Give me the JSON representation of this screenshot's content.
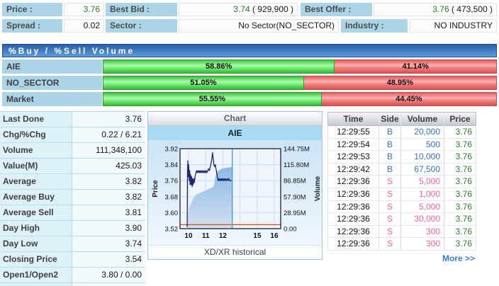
{
  "colors": {
    "up_green": "#2b7d2b",
    "buy_blue": "#3a6fc4",
    "sell_pink": "#f45fa4",
    "label_bg": "#abd4e6",
    "section_header_top": "#2a5fa5",
    "section_header_bottom": "#5b9bdf",
    "link_blue": "#3a7fc0",
    "price_line": "#20276e",
    "ref_line_red": "#e04818",
    "now_line_blue": "#5b9bd5"
  },
  "topbar": {
    "price_label": "Price :",
    "price_value": "3.76",
    "best_bid_label": "Best Bid :",
    "best_bid_value": "3.74",
    "best_bid_qty": " ( 929,900 )",
    "best_offer_label": "Best Offer :",
    "best_offer_value": "3.76",
    "best_offer_qty": " ( 473,500 )",
    "spread_label": "Spread :",
    "spread_value": "0.02",
    "sector_label": "Sector :",
    "sector_value": "No Sector(NO_SECTOR)",
    "industry_label": "Industry :",
    "industry_value": "NO INDUSTRY"
  },
  "buysell": {
    "title": "%Buy / %Sell Volume",
    "rows": [
      {
        "label": "AIE",
        "buy_pct": 58.86,
        "sell_pct": 41.14,
        "buy_text": "58.86%",
        "sell_text": "41.14%"
      },
      {
        "label": "NO_SECTOR",
        "buy_pct": 51.05,
        "sell_pct": 48.95,
        "buy_text": "51.05%",
        "sell_text": "48.95%"
      },
      {
        "label": "Market",
        "buy_pct": 55.55,
        "sell_pct": 44.45,
        "buy_text": "55.55%",
        "sell_text": "44.45%"
      }
    ]
  },
  "stats": {
    "rows": [
      {
        "label": "Last Done",
        "value": "3.76",
        "color": "green"
      },
      {
        "label": "Chg/%Chg",
        "value": "0.22 / 6.21",
        "color": "green"
      },
      {
        "label": "Volume",
        "value": "111,348,100",
        "color": "dark"
      },
      {
        "label": "Value(M)",
        "value": "425.03",
        "color": "dark"
      },
      {
        "label": "Average",
        "value": "3.82",
        "color": "dark"
      },
      {
        "label": "Average Buy",
        "value": "3.82",
        "color": "dark"
      },
      {
        "label": "Average Sell",
        "value": "3.81",
        "color": "dark"
      },
      {
        "label": "Day High",
        "value": "3.90",
        "color": "green"
      },
      {
        "label": "Day Low",
        "value": "3.74",
        "color": "green"
      },
      {
        "label": "Closing Price",
        "value": "3.54",
        "color": "dark"
      },
      {
        "label": "Open1/Open2",
        "value": "3.80 / 0.00",
        "color": "green"
      }
    ]
  },
  "chart_panel": {
    "title": "Chart",
    "footer": "XD/XR historical"
  },
  "chart_data": {
    "type": "line",
    "title": "AIE",
    "x_axis": {
      "ticks": [
        {
          "label": "10",
          "f": 0.0845
        },
        {
          "label": "11",
          "f": 0.2549
        },
        {
          "label": "12",
          "f": 0.4253
        },
        {
          "label": "15",
          "f": 0.7676
        },
        {
          "label": "16",
          "f": 0.9366
        }
      ],
      "gridline_fs": [
        0.0845,
        0.2549,
        0.4253,
        0.5957,
        0.7676,
        0.9366
      ],
      "base_h": 10,
      "base_f": 0.0845,
      "per_hour": 0.1704
    },
    "y_left": {
      "label": "Price",
      "min": 3.52,
      "max": 3.92,
      "ticks": [
        "3.92",
        "3.84",
        "3.76",
        "3.68",
        "3.60",
        "3.52"
      ]
    },
    "y_right": {
      "label": "Volume",
      "min": 0,
      "max": 144.75,
      "ticks": [
        "144.75M",
        "115.80M",
        "86.85M",
        "57.90M",
        "28.95M",
        "0.00"
      ]
    },
    "series": [
      {
        "name": "price",
        "type": "line",
        "axis": "left",
        "points": [
          [
            9.9,
            3.54
          ],
          [
            9.92,
            3.53
          ],
          [
            9.94,
            3.8
          ],
          [
            9.96,
            3.86
          ],
          [
            9.98,
            3.78
          ],
          [
            10.01,
            3.84
          ],
          [
            10.04,
            3.76
          ],
          [
            10.07,
            3.81
          ],
          [
            10.09,
            3.74
          ],
          [
            10.12,
            3.79
          ],
          [
            10.15,
            3.74
          ],
          [
            10.18,
            3.78
          ],
          [
            10.21,
            3.73
          ],
          [
            10.24,
            3.77
          ],
          [
            10.27,
            3.74
          ],
          [
            10.31,
            3.77
          ],
          [
            10.34,
            3.75
          ],
          [
            10.38,
            3.78
          ],
          [
            10.43,
            3.8
          ],
          [
            10.47,
            3.81
          ],
          [
            10.51,
            3.8
          ],
          [
            10.55,
            3.81
          ],
          [
            10.59,
            3.8
          ],
          [
            10.63,
            3.81
          ],
          [
            10.67,
            3.8
          ],
          [
            10.71,
            3.81
          ],
          [
            10.75,
            3.8
          ],
          [
            10.79,
            3.81
          ],
          [
            10.83,
            3.8
          ],
          [
            10.87,
            3.81
          ],
          [
            10.91,
            3.8
          ],
          [
            10.95,
            3.81
          ],
          [
            10.99,
            3.8
          ],
          [
            11.03,
            3.81
          ],
          [
            11.07,
            3.8
          ],
          [
            11.12,
            3.81
          ],
          [
            11.17,
            3.82
          ],
          [
            11.22,
            3.81
          ],
          [
            11.27,
            3.83
          ],
          [
            11.32,
            3.85
          ],
          [
            11.36,
            3.87
          ],
          [
            11.4,
            3.9
          ],
          [
            11.44,
            3.87
          ],
          [
            11.48,
            3.84
          ],
          [
            11.52,
            3.83
          ],
          [
            11.56,
            3.84
          ],
          [
            11.6,
            3.82
          ],
          [
            11.64,
            3.8
          ],
          [
            11.68,
            3.78
          ],
          [
            11.72,
            3.76
          ],
          [
            11.76,
            3.77
          ],
          [
            11.8,
            3.76
          ],
          [
            11.84,
            3.77
          ],
          [
            11.88,
            3.76
          ],
          [
            11.92,
            3.77
          ],
          [
            11.96,
            3.76
          ],
          [
            12.0,
            3.77
          ],
          [
            12.04,
            3.76
          ],
          [
            12.08,
            3.77
          ],
          [
            12.12,
            3.76
          ],
          [
            12.16,
            3.77
          ],
          [
            12.21,
            3.76
          ],
          [
            12.26,
            3.77
          ],
          [
            12.31,
            3.76
          ],
          [
            12.36,
            3.77
          ],
          [
            12.41,
            3.76
          ],
          [
            12.46,
            3.76
          ],
          [
            12.5,
            3.76
          ]
        ]
      },
      {
        "name": "cumulative_volume",
        "type": "area",
        "axis": "right",
        "points": [
          [
            9.9,
            0
          ],
          [
            9.94,
            16
          ],
          [
            9.97,
            28
          ],
          [
            10.0,
            33
          ],
          [
            10.05,
            38
          ],
          [
            10.1,
            42
          ],
          [
            10.2,
            50
          ],
          [
            10.3,
            56
          ],
          [
            10.4,
            60
          ],
          [
            10.5,
            62
          ],
          [
            10.62,
            64
          ],
          [
            10.75,
            66
          ],
          [
            10.9,
            68
          ],
          [
            11.05,
            70
          ],
          [
            11.2,
            72
          ],
          [
            11.35,
            74
          ],
          [
            11.45,
            76
          ],
          [
            11.5,
            82
          ],
          [
            11.55,
            92
          ],
          [
            11.6,
            98
          ],
          [
            11.66,
            102
          ],
          [
            11.75,
            105
          ],
          [
            11.85,
            107
          ],
          [
            12.0,
            109
          ],
          [
            12.2,
            110
          ],
          [
            12.4,
            111
          ],
          [
            12.55,
            111.35
          ]
        ]
      }
    ],
    "ref_line": {
      "value": 3.54
    },
    "now_line": {
      "h": 12.55
    }
  },
  "trades": {
    "headers": [
      "Time",
      "Side",
      "Volume",
      "Price"
    ],
    "rows": [
      {
        "time": "12:29:55",
        "side": "B",
        "volume": "20,000",
        "price": "3.76"
      },
      {
        "time": "12:29:54",
        "side": "B",
        "volume": "500",
        "price": "3.76"
      },
      {
        "time": "12:29:53",
        "side": "B",
        "volume": "10,000",
        "price": "3.76"
      },
      {
        "time": "12:29:42",
        "side": "B",
        "volume": "67,500",
        "price": "3.76"
      },
      {
        "time": "12:29:36",
        "side": "S",
        "volume": "5,000",
        "price": "3.76"
      },
      {
        "time": "12:29:36",
        "side": "S",
        "volume": "1,000",
        "price": "3.76"
      },
      {
        "time": "12:29:36",
        "side": "S",
        "volume": "5,000",
        "price": "3.76"
      },
      {
        "time": "12:29:36",
        "side": "S",
        "volume": "30,000",
        "price": "3.76"
      },
      {
        "time": "12:29:36",
        "side": "S",
        "volume": "300",
        "price": "3.76"
      },
      {
        "time": "12:29:36",
        "side": "S",
        "volume": "300",
        "price": "3.76"
      }
    ],
    "more_label": "More >>"
  }
}
